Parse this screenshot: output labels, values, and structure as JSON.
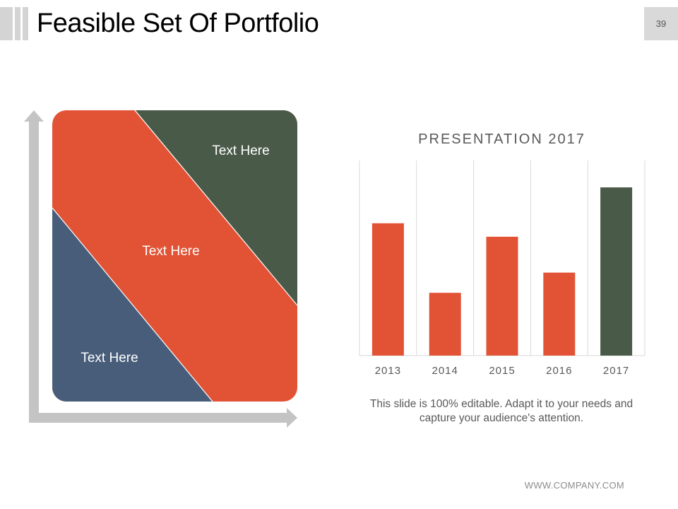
{
  "slide": {
    "title": "Feasible Set Of Portfolio",
    "page_number": "39",
    "caption": "This slide is 100% editable. Adapt it to your needs and capture your audience's attention.",
    "footer": "WWW.COMPANY.COM"
  },
  "diagram": {
    "labels": {
      "top_right": "Text Here",
      "middle": "Text Here",
      "bottom_left": "Text Here"
    },
    "colors": {
      "green": "#4a5a48",
      "orange": "#e25336",
      "blue": "#475d7a",
      "arrows": "#c4c4c4"
    }
  },
  "chart_data": {
    "type": "bar",
    "title": "PRESENTATION 2017",
    "categories": [
      "2013",
      "2014",
      "2015",
      "2016",
      "2017"
    ],
    "values": [
      59,
      28,
      53,
      37,
      75
    ],
    "ylim": [
      0,
      87
    ],
    "grid": "vertical",
    "colors": {
      "default": "#e25336",
      "highlight": "#4a5a48",
      "gridline": "#d9d9d9",
      "tick_label": "#595959"
    },
    "highlight_category": "2017"
  }
}
